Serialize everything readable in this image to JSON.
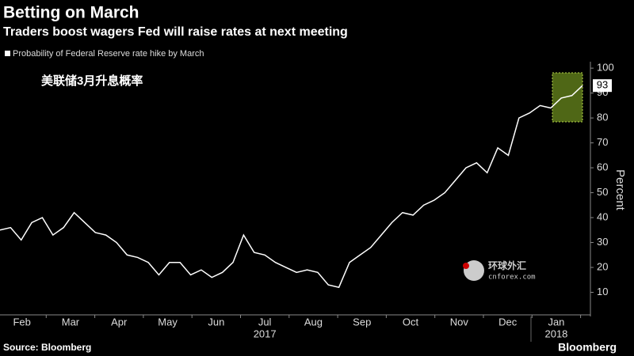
{
  "chart_data": {
    "type": "line",
    "title": "Betting on March",
    "subtitle": "Traders boost wagers Fed will raise rates at next meeting",
    "legend": "Probability of Federal Reserve rate hike by March",
    "annotation": "美联储3月升息概率",
    "watermark": [
      "环球外汇",
      "cnforex.com"
    ],
    "y_label": "Percent",
    "source": "Source: Bloomberg",
    "brand": "Bloomberg",
    "months": [
      "Feb",
      "Mar",
      "Apr",
      "May",
      "Jun",
      "Jul",
      "Aug",
      "Sep",
      "Oct",
      "Nov",
      "Dec",
      "Jan"
    ],
    "years": [
      "2017",
      "2018"
    ],
    "color": "#ffffff",
    "values": [
      35,
      36,
      31,
      38,
      40,
      33,
      36,
      42,
      38,
      34,
      33,
      30,
      25,
      24,
      22,
      17,
      22,
      22,
      17,
      19,
      16,
      18,
      22,
      33,
      26,
      25,
      22,
      20,
      18,
      19,
      18,
      13,
      12,
      22,
      25,
      28,
      33,
      38,
      42,
      41,
      45,
      47,
      50,
      55,
      60,
      62,
      58,
      68,
      65,
      80,
      82,
      85,
      84,
      88,
      89,
      93
    ],
    "ylim": [
      0,
      101
    ],
    "yticks": [
      10,
      20,
      30,
      40,
      50,
      60,
      70,
      80,
      90,
      100
    ],
    "grid": false
  }
}
